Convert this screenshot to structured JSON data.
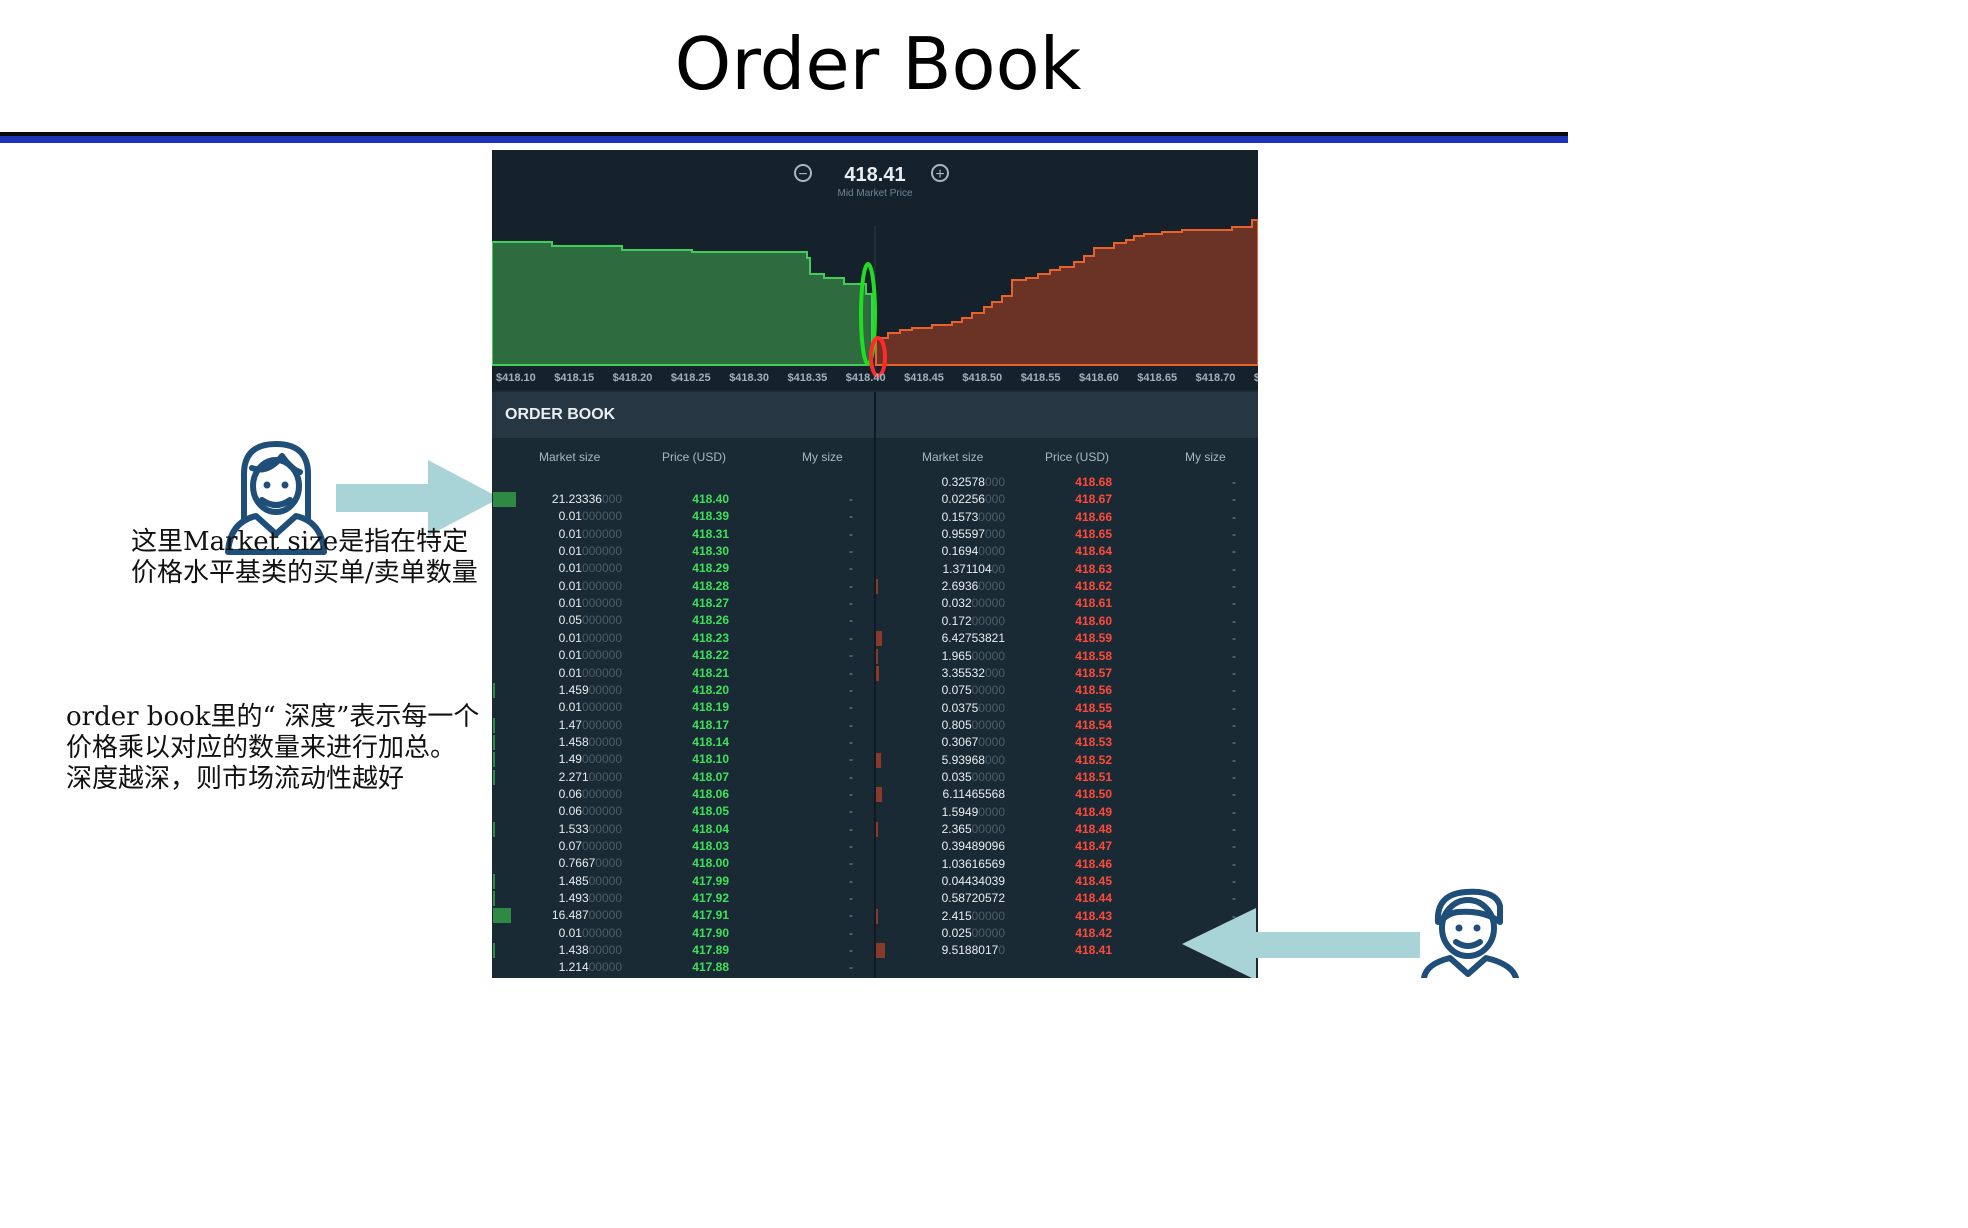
{
  "slide": {
    "title": "Order Book",
    "note_market_size": "这里Market size是指在特定价格水平基类的买单/卖单数量",
    "note_depth": "order book里的“ 深度”表示每一个价格乘以对应的数量来进行加总。 深度越深，则市场流动性越好"
  },
  "chart": {
    "mid_price": "418.41",
    "mid_label": "Mid Market Price",
    "zoom_out_icon": "minus-circle-icon",
    "zoom_in_icon": "plus-circle-icon",
    "ticks": [
      "$418.10",
      "$418.15",
      "$418.20",
      "$418.25",
      "$418.30",
      "$418.35",
      "$418.40",
      "$418.45",
      "$418.50",
      "$418.55",
      "$418.60",
      "$418.65",
      "$418.70",
      "$"
    ],
    "colors": {
      "bid_fill": "#2e6b3e",
      "bid_line": "#3ecf5a",
      "ask_fill": "#6b3326",
      "ask_line": "#e8622c",
      "bid_mark": "#22dd22",
      "ask_mark": "#ff2b2b"
    }
  },
  "order_book": {
    "title": "ORDER BOOK",
    "columns": {
      "market_size": "Market size",
      "price": "Price (USD)",
      "my_size": "My size"
    },
    "bids": [
      {
        "size": "21.23336",
        "pad": "000",
        "price": "418.40",
        "my": "-"
      },
      {
        "size": "0.01",
        "pad": "000000",
        "price": "418.39",
        "my": "-"
      },
      {
        "size": "0.01",
        "pad": "000000",
        "price": "418.31",
        "my": "-"
      },
      {
        "size": "0.01",
        "pad": "000000",
        "price": "418.30",
        "my": "-"
      },
      {
        "size": "0.01",
        "pad": "000000",
        "price": "418.29",
        "my": "-"
      },
      {
        "size": "0.01",
        "pad": "000000",
        "price": "418.28",
        "my": "-"
      },
      {
        "size": "0.01",
        "pad": "000000",
        "price": "418.27",
        "my": "-"
      },
      {
        "size": "0.05",
        "pad": "000000",
        "price": "418.26",
        "my": "-"
      },
      {
        "size": "0.01",
        "pad": "000000",
        "price": "418.23",
        "my": "-"
      },
      {
        "size": "0.01",
        "pad": "000000",
        "price": "418.22",
        "my": "-"
      },
      {
        "size": "0.01",
        "pad": "000000",
        "price": "418.21",
        "my": "-"
      },
      {
        "size": "1.459",
        "pad": "00000",
        "price": "418.20",
        "my": "-"
      },
      {
        "size": "0.01",
        "pad": "000000",
        "price": "418.19",
        "my": "-"
      },
      {
        "size": "1.47",
        "pad": "000000",
        "price": "418.17",
        "my": "-"
      },
      {
        "size": "1.458",
        "pad": "00000",
        "price": "418.14",
        "my": "-"
      },
      {
        "size": "1.49",
        "pad": "000000",
        "price": "418.10",
        "my": "-"
      },
      {
        "size": "2.271",
        "pad": "00000",
        "price": "418.07",
        "my": "-"
      },
      {
        "size": "0.06",
        "pad": "000000",
        "price": "418.06",
        "my": "-"
      },
      {
        "size": "0.06",
        "pad": "000000",
        "price": "418.05",
        "my": "-"
      },
      {
        "size": "1.533",
        "pad": "00000",
        "price": "418.04",
        "my": "-"
      },
      {
        "size": "0.07",
        "pad": "000000",
        "price": "418.03",
        "my": "-"
      },
      {
        "size": "0.7667",
        "pad": "0000",
        "price": "418.00",
        "my": "-"
      },
      {
        "size": "1.485",
        "pad": "00000",
        "price": "417.99",
        "my": "-"
      },
      {
        "size": "1.493",
        "pad": "00000",
        "price": "417.92",
        "my": "-"
      },
      {
        "size": "16.487",
        "pad": "00000",
        "price": "417.91",
        "my": "-"
      },
      {
        "size": "0.01",
        "pad": "000000",
        "price": "417.90",
        "my": "-"
      },
      {
        "size": "1.438",
        "pad": "00000",
        "price": "417.89",
        "my": "-"
      },
      {
        "size": "1.214",
        "pad": "00000",
        "price": "417.88",
        "my": "-"
      }
    ],
    "asks": [
      {
        "size": "0.32578",
        "pad": "000",
        "price": "418.68",
        "my": "-"
      },
      {
        "size": "0.02256",
        "pad": "000",
        "price": "418.67",
        "my": "-"
      },
      {
        "size": "0.1573",
        "pad": "0000",
        "price": "418.66",
        "my": "-"
      },
      {
        "size": "0.95597",
        "pad": "000",
        "price": "418.65",
        "my": "-"
      },
      {
        "size": "0.1694",
        "pad": "0000",
        "price": "418.64",
        "my": "-"
      },
      {
        "size": "1.371104",
        "pad": "00",
        "price": "418.63",
        "my": "-"
      },
      {
        "size": "2.6936",
        "pad": "0000",
        "price": "418.62",
        "my": "-"
      },
      {
        "size": "0.032",
        "pad": "00000",
        "price": "418.61",
        "my": "-"
      },
      {
        "size": "0.172",
        "pad": "00000",
        "price": "418.60",
        "my": "-"
      },
      {
        "size": "6.42753821",
        "pad": "",
        "price": "418.59",
        "my": "-"
      },
      {
        "size": "1.965",
        "pad": "00000",
        "price": "418.58",
        "my": "-"
      },
      {
        "size": "3.35532",
        "pad": "000",
        "price": "418.57",
        "my": "-"
      },
      {
        "size": "0.075",
        "pad": "00000",
        "price": "418.56",
        "my": "-"
      },
      {
        "size": "0.0375",
        "pad": "0000",
        "price": "418.55",
        "my": "-"
      },
      {
        "size": "0.805",
        "pad": "00000",
        "price": "418.54",
        "my": "-"
      },
      {
        "size": "0.3067",
        "pad": "0000",
        "price": "418.53",
        "my": "-"
      },
      {
        "size": "5.93968",
        "pad": "000",
        "price": "418.52",
        "my": "-"
      },
      {
        "size": "0.035",
        "pad": "00000",
        "price": "418.51",
        "my": "-"
      },
      {
        "size": "6.11465568",
        "pad": "",
        "price": "418.50",
        "my": "-"
      },
      {
        "size": "1.5949",
        "pad": "0000",
        "price": "418.49",
        "my": "-"
      },
      {
        "size": "2.365",
        "pad": "00000",
        "price": "418.48",
        "my": "-"
      },
      {
        "size": "0.39489096",
        "pad": "",
        "price": "418.47",
        "my": "-"
      },
      {
        "size": "1.03616569",
        "pad": "",
        "price": "418.46",
        "my": "-"
      },
      {
        "size": "0.04434039",
        "pad": "",
        "price": "418.45",
        "my": "-"
      },
      {
        "size": "0.58720572",
        "pad": "",
        "price": "418.44",
        "my": "-"
      },
      {
        "size": "2.415",
        "pad": "00000",
        "price": "418.43",
        "my": "-"
      },
      {
        "size": "0.025",
        "pad": "00000",
        "price": "418.42",
        "my": "-"
      },
      {
        "size": "9.5188017",
        "pad": "0",
        "price": "418.41",
        "my": "-"
      }
    ]
  },
  "decor": {
    "woman_icon": "woman-avatar-icon",
    "man_icon": "man-avatar-icon",
    "arrow_color": "#a8d4d8",
    "avatar_color": "#1f4e79"
  }
}
